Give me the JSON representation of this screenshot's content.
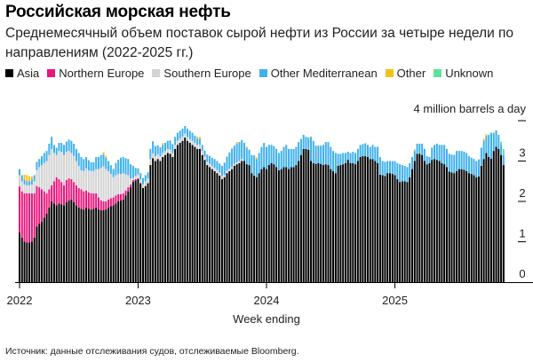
{
  "title": "Российская морская нефть",
  "subtitle": "Среднемесячный объем поставок сырой нефти из России за четыре недели по направлениям (2022-2025 гг.)",
  "source": "Источник: данные отслеживания судов, отслеживаемые Bloomberg.",
  "chart_data": {
    "type": "bar",
    "stacked": true,
    "xlabel": "Week ending",
    "ylabel": "4 million barrels a day",
    "ylim": [
      0,
      4
    ],
    "yticks": [
      "0",
      "1",
      "2",
      "3"
    ],
    "xticks": [
      {
        "label": "2022",
        "week": 0
      },
      {
        "label": "2023",
        "week": 48
      },
      {
        "label": "2024",
        "week": 100
      },
      {
        "label": "2025",
        "week": 152
      }
    ],
    "n_weeks": 197,
    "legend": "top",
    "series": [
      {
        "name": "Asia",
        "color": "#000000",
        "values": [
          1.23,
          1.1,
          1.0,
          0.98,
          0.98,
          1.0,
          1.1,
          1.38,
          1.45,
          1.5,
          1.6,
          1.7,
          1.85,
          2.0,
          1.95,
          1.9,
          1.95,
          1.93,
          1.9,
          1.98,
          2.02,
          2.05,
          1.98,
          1.9,
          1.85,
          1.82,
          1.8,
          1.85,
          1.82,
          1.8,
          1.82,
          1.85,
          1.8,
          1.78,
          1.78,
          1.8,
          1.85,
          1.88,
          1.9,
          1.95,
          2.0,
          2.02,
          2.05,
          2.15,
          2.25,
          2.35,
          2.48,
          2.52,
          2.55,
          2.45,
          2.33,
          2.38,
          2.45,
          2.9,
          3.07,
          3.0,
          3.05,
          3.0,
          3.1,
          3.15,
          3.2,
          3.18,
          3.1,
          3.3,
          3.4,
          3.45,
          3.5,
          3.58,
          3.5,
          3.45,
          3.4,
          3.35,
          3.3,
          3.3,
          3.15,
          3.03,
          2.9,
          2.85,
          2.8,
          2.75,
          2.7,
          2.64,
          2.55,
          2.6,
          2.7,
          2.75,
          2.8,
          2.88,
          2.92,
          2.95,
          3.0,
          3.0,
          2.92,
          2.9,
          2.7,
          2.64,
          2.6,
          2.7,
          2.8,
          2.85,
          2.8,
          2.9,
          2.95,
          2.92,
          2.85,
          2.77,
          2.8,
          2.85,
          2.85,
          2.8,
          2.85,
          2.85,
          2.9,
          3.0,
          3.15,
          3.3,
          3.3,
          3.28,
          3.0,
          2.95,
          2.93,
          2.95,
          2.93,
          2.9,
          2.92,
          2.9,
          2.8,
          2.75,
          2.7,
          2.88,
          2.9,
          2.92,
          2.95,
          3.03,
          2.95,
          2.95,
          2.92,
          3.0,
          3.1,
          3.12,
          3.12,
          3.1,
          3.05,
          3.05,
          3.0,
          2.95,
          2.66,
          2.65,
          2.63,
          2.7,
          2.7,
          2.68,
          2.65,
          2.55,
          2.48,
          2.5,
          2.5,
          2.48,
          2.6,
          2.8,
          3.0,
          3.18,
          3.18,
          3.15,
          3.0,
          2.92,
          2.95,
          3.03,
          3.05,
          3.03,
          3.0,
          2.95,
          2.92,
          2.85,
          2.74,
          2.72,
          2.7,
          2.75,
          2.8,
          2.8,
          2.78,
          2.75,
          2.7,
          2.68,
          2.65,
          2.6,
          2.62,
          2.88,
          3.05,
          3.2,
          3.1,
          3.06,
          3.25,
          3.35,
          3.3,
          3.15,
          2.9
        ]
      },
      {
        "name": "Northern Europe",
        "color": "#e8157d",
        "values": [
          1.14,
          1.15,
          1.2,
          1.22,
          1.22,
          1.2,
          1.1,
          1.0,
          0.9,
          0.8,
          0.65,
          0.5,
          0.45,
          0.4,
          0.55,
          0.7,
          0.6,
          0.55,
          0.5,
          0.55,
          0.55,
          0.5,
          0.5,
          0.5,
          0.48,
          0.48,
          0.45,
          0.42,
          0.4,
          0.4,
          0.38,
          0.35,
          0.3,
          0.25,
          0.22,
          0.2,
          0.2,
          0.2,
          0.2,
          0.2,
          0.18,
          0.16,
          0.15,
          0.12,
          0.1,
          0.07,
          0.05,
          0.03,
          0.02
        ]
      },
      {
        "name": "Southern Europe",
        "color": "#d3d3d3",
        "values": [
          0.28,
          0.25,
          0.22,
          0.2,
          0.2,
          0.22,
          0.3,
          0.4,
          0.5,
          0.6,
          0.7,
          0.8,
          0.85,
          0.9,
          0.7,
          0.55,
          0.7,
          0.75,
          0.75,
          0.7,
          0.68,
          0.65,
          0.65,
          0.6,
          0.55,
          0.47,
          0.5,
          0.55,
          0.55,
          0.55,
          0.55,
          0.6,
          0.7,
          0.8,
          0.87,
          0.8,
          0.7,
          0.6,
          0.5,
          0.5,
          0.5,
          0.5,
          0.5,
          0.4,
          0.3,
          0.15,
          0.05,
          0.08,
          0.1,
          0.1,
          0.1,
          0.12,
          0.12,
          0.15,
          0.12,
          0.12,
          0.12,
          0.12,
          0.1,
          0.1,
          0.1,
          0.1,
          0.1,
          0.1,
          0.1,
          0.1,
          0.1,
          0.1,
          0.1,
          0.1,
          0.1,
          0.1,
          0.1,
          0.1,
          0.1,
          0.08,
          0.08,
          0.08,
          0.08,
          0.08,
          0.08,
          0.08,
          0.08,
          0.06,
          0.06,
          0.06,
          0.06,
          0.05,
          0.05,
          0.05,
          0.05
        ]
      },
      {
        "name": "Other Mediterranean",
        "color": "#3fb1ec",
        "values": [
          0.15,
          0.15,
          0.12,
          0.1,
          0.1,
          0.12,
          0.15,
          0.2,
          0.2,
          0.22,
          0.25,
          0.25,
          0.28,
          0.3,
          0.2,
          0.18,
          0.2,
          0.22,
          0.25,
          0.25,
          0.28,
          0.3,
          0.3,
          0.3,
          0.32,
          0.33,
          0.3,
          0.28,
          0.25,
          0.22,
          0.22,
          0.3,
          0.3,
          0.32,
          0.3,
          0.28,
          0.25,
          0.22,
          0.2,
          0.3,
          0.35,
          0.4,
          0.4,
          0.4,
          0.4,
          0.35,
          0.3,
          0.2,
          0.15,
          0.15,
          0.15,
          0.15,
          0.15,
          0.25,
          0.3,
          0.25,
          0.22,
          0.22,
          0.2,
          0.2,
          0.2,
          0.23,
          0.22,
          0.2,
          0.2,
          0.2,
          0.2,
          0.19,
          0.2,
          0.2,
          0.2,
          0.18,
          0.15,
          0.15,
          0.15,
          0.15,
          0.18,
          0.2,
          0.2,
          0.22,
          0.22,
          0.22,
          0.25,
          0.3,
          0.35,
          0.4,
          0.45,
          0.45,
          0.45,
          0.47,
          0.47,
          0.45,
          0.4,
          0.38,
          0.45,
          0.5,
          0.45,
          0.5,
          0.55,
          0.6,
          0.55,
          0.5,
          0.45,
          0.45,
          0.45,
          0.43,
          0.45,
          0.5,
          0.55,
          0.5,
          0.45,
          0.45,
          0.45,
          0.47,
          0.4,
          0.35,
          0.3,
          0.3,
          0.6,
          0.55,
          0.45,
          0.43,
          0.45,
          0.5,
          0.55,
          0.57,
          0.55,
          0.5,
          0.5,
          0.3,
          0.28,
          0.28,
          0.25,
          0.2,
          0.25,
          0.28,
          0.28,
          0.3,
          0.3,
          0.3,
          0.32,
          0.3,
          0.3,
          0.35,
          0.35,
          0.4,
          0.44,
          0.35,
          0.35,
          0.3,
          0.3,
          0.32,
          0.35,
          0.4,
          0.44,
          0.4,
          0.38,
          0.37,
          0.35,
          0.3,
          0.25,
          0.25,
          0.25,
          0.28,
          0.3,
          0.2,
          0.15,
          0.3,
          0.35,
          0.4,
          0.4,
          0.45,
          0.48,
          0.45,
          0.44,
          0.44,
          0.45,
          0.5,
          0.45,
          0.45,
          0.45,
          0.45,
          0.42,
          0.4,
          0.4,
          0.4,
          0.42,
          0.45,
          0.45,
          0.42,
          0.55,
          0.64,
          0.45,
          0.41,
          0.35,
          0.25,
          0.25
        ]
      },
      {
        "name": "Other",
        "color": "#f5c01a",
        "points": [
          [
            2,
            0.12
          ],
          [
            3,
            0.15
          ],
          [
            4,
            0.12
          ],
          [
            5,
            0.08
          ],
          [
            34,
            0.05
          ],
          [
            35,
            0.05
          ],
          [
            58,
            0.04
          ],
          [
            72,
            0.05
          ],
          [
            73,
            0.05
          ],
          [
            88,
            0.05
          ],
          [
            92,
            0.04
          ],
          [
            96,
            0.04
          ],
          [
            160,
            0.04
          ],
          [
            188,
            0.05
          ],
          [
            189,
            0.04
          ]
        ]
      },
      {
        "name": "Unknown",
        "color": "#5de39b",
        "points": [
          [
            195,
            0.08
          ],
          [
            196,
            0.15
          ]
        ]
      }
    ]
  }
}
